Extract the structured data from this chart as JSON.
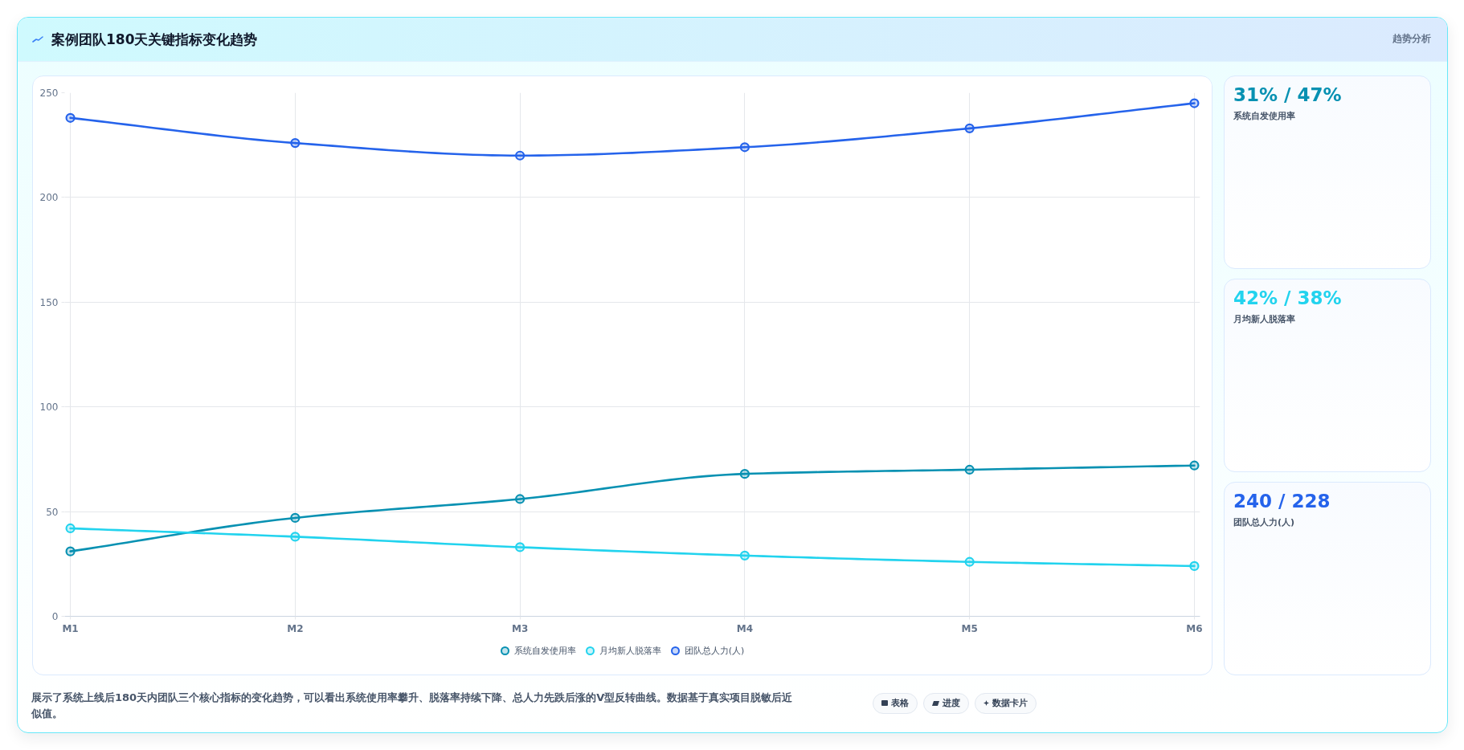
{
  "chart_data": [
    {
      "type": "line",
      "title": "案例团队180天关键指标变化趋势",
      "categories": [
        "M1",
        "M2",
        "M3",
        "M4",
        "M5",
        "M6"
      ],
      "series": [
        {
          "name": "系统自发使用率",
          "color": "#0891b2",
          "values": [
            31,
            47,
            56,
            68,
            70,
            72
          ]
        },
        {
          "name": "月均新人脱落率",
          "color": "#22d3ee",
          "values": [
            42,
            38,
            33,
            29,
            26,
            24
          ]
        },
        {
          "name": "团队总人力(人)",
          "color": "#2563eb",
          "values": [
            238,
            226,
            220,
            224,
            233,
            245
          ]
        }
      ],
      "ylim": [
        0,
        250
      ],
      "yticks": [
        0,
        50,
        100,
        150,
        200,
        250
      ],
      "grid": true,
      "legend": "bottom",
      "marker": "circle",
      "line_style": "solid",
      "annotations": [
        "趋势分析",
        "展示了系统上线后180天内团队三个核心指标的变化趋势，可以看出系统使用率攀升、脱落率持续下降、总人力先跌后涨的V型反转曲线。数据基于真实项目脱敏后近似值。",
        "表格",
        "进度",
        "数据卡片"
      ]
    },
    {
      "type": "other",
      "title": "31% / 47%",
      "subtitle": "系统自发使用率"
    },
    {
      "type": "other",
      "title": "42% / 38%",
      "subtitle": "月均新人脱落率"
    },
    {
      "type": "other",
      "title": "240 / 228",
      "subtitle": "团队总人力(人)"
    }
  ]
}
